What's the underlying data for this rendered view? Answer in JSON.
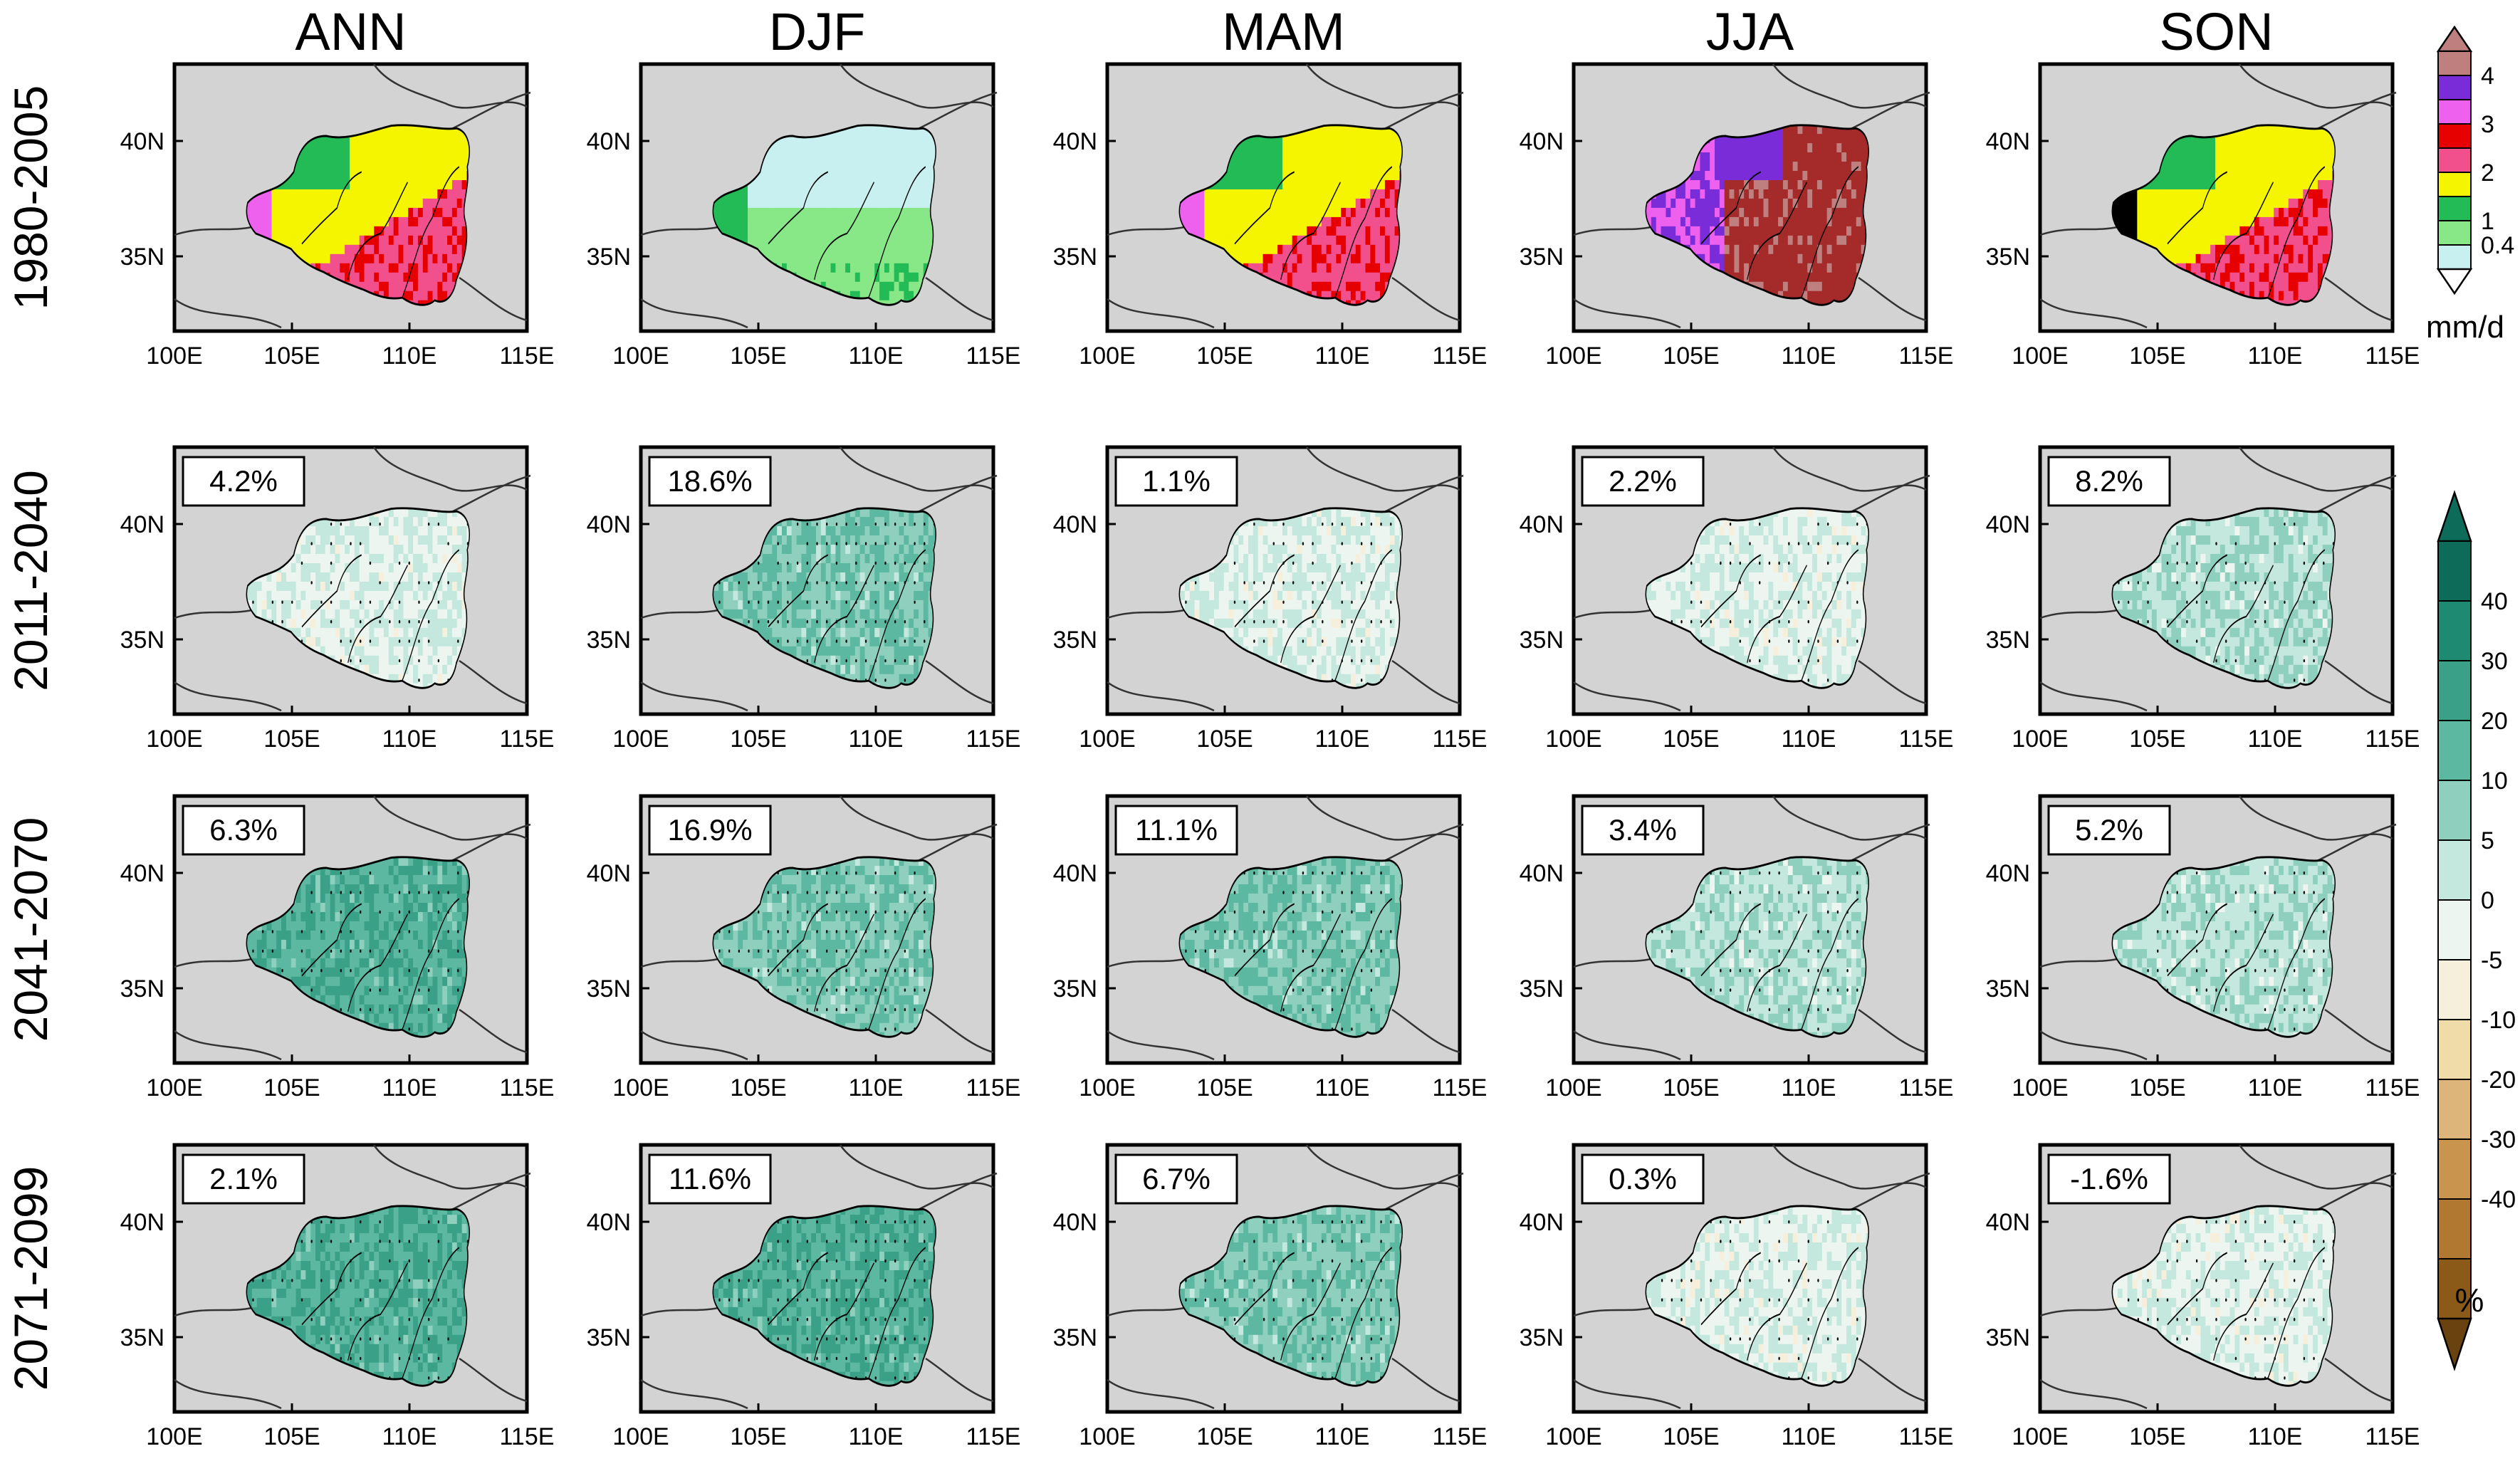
{
  "columns": [
    "ANN",
    "DJF",
    "MAM",
    "JJA",
    "SON"
  ],
  "rows": [
    {
      "period": "1980-2005",
      "kind": "absolute",
      "values": [
        null,
        null,
        null,
        null,
        null
      ]
    },
    {
      "period": "2011-2040",
      "kind": "change",
      "values": [
        "4.2%",
        "18.6%",
        "1.1%",
        "2.2%",
        "8.2%"
      ]
    },
    {
      "period": "2041-2070",
      "kind": "change",
      "values": [
        "6.3%",
        "16.9%",
        "11.1%",
        "3.4%",
        "5.2%"
      ]
    },
    {
      "period": "2071-2099",
      "kind": "change",
      "values": [
        "2.1%",
        "11.6%",
        "6.7%",
        "0.3%",
        "-1.6%"
      ]
    }
  ],
  "axes": {
    "lon_ticks": [
      "100E",
      "105E",
      "110E",
      "115E"
    ],
    "lat_ticks": [
      "40N",
      "35N"
    ]
  },
  "legend_precip": {
    "labels": [
      "4",
      "3",
      "2",
      "1",
      "0.4"
    ],
    "unit": "mm/d",
    "colors": [
      "#bf7f7f",
      "#7a2cd8",
      "#ee60ee",
      "#e60000",
      "#f2508c",
      "#f5f500",
      "#22bb55",
      "#88e888",
      "#c8f0f0"
    ]
  },
  "legend_change": {
    "labels": [
      "40",
      "30",
      "20",
      "10",
      "5",
      "0",
      "-5",
      "-10",
      "-20",
      "-30",
      "-40"
    ],
    "unit": "%",
    "colors": [
      "#0d6b5a",
      "#1e8a72",
      "#3ba088",
      "#5cb8a0",
      "#8ed0bd",
      "#c4e8de",
      "#edf5f0",
      "#f6efdc",
      "#f0dca8",
      "#ddb57a",
      "#c8944e",
      "#b07830",
      "#8c5a18"
    ]
  },
  "map_colors": {
    "background": "#d3d3d3",
    "ann": [
      "#f5f500",
      "#22bb55",
      "#f2508c",
      "#e60000",
      "#ee60ee"
    ],
    "djf": [
      "#c8f0f0",
      "#88e888",
      "#22bb55"
    ],
    "mam": [
      "#f5f500",
      "#22bb55",
      "#f2508c",
      "#e60000",
      "#ee60ee"
    ],
    "jja": [
      "#a52a2a",
      "#7a2cd8",
      "#bf7f7f",
      "#ee60ee"
    ],
    "son": [
      "#f5f500",
      "#22bb55",
      "#f2508c",
      "#e60000"
    ]
  }
}
